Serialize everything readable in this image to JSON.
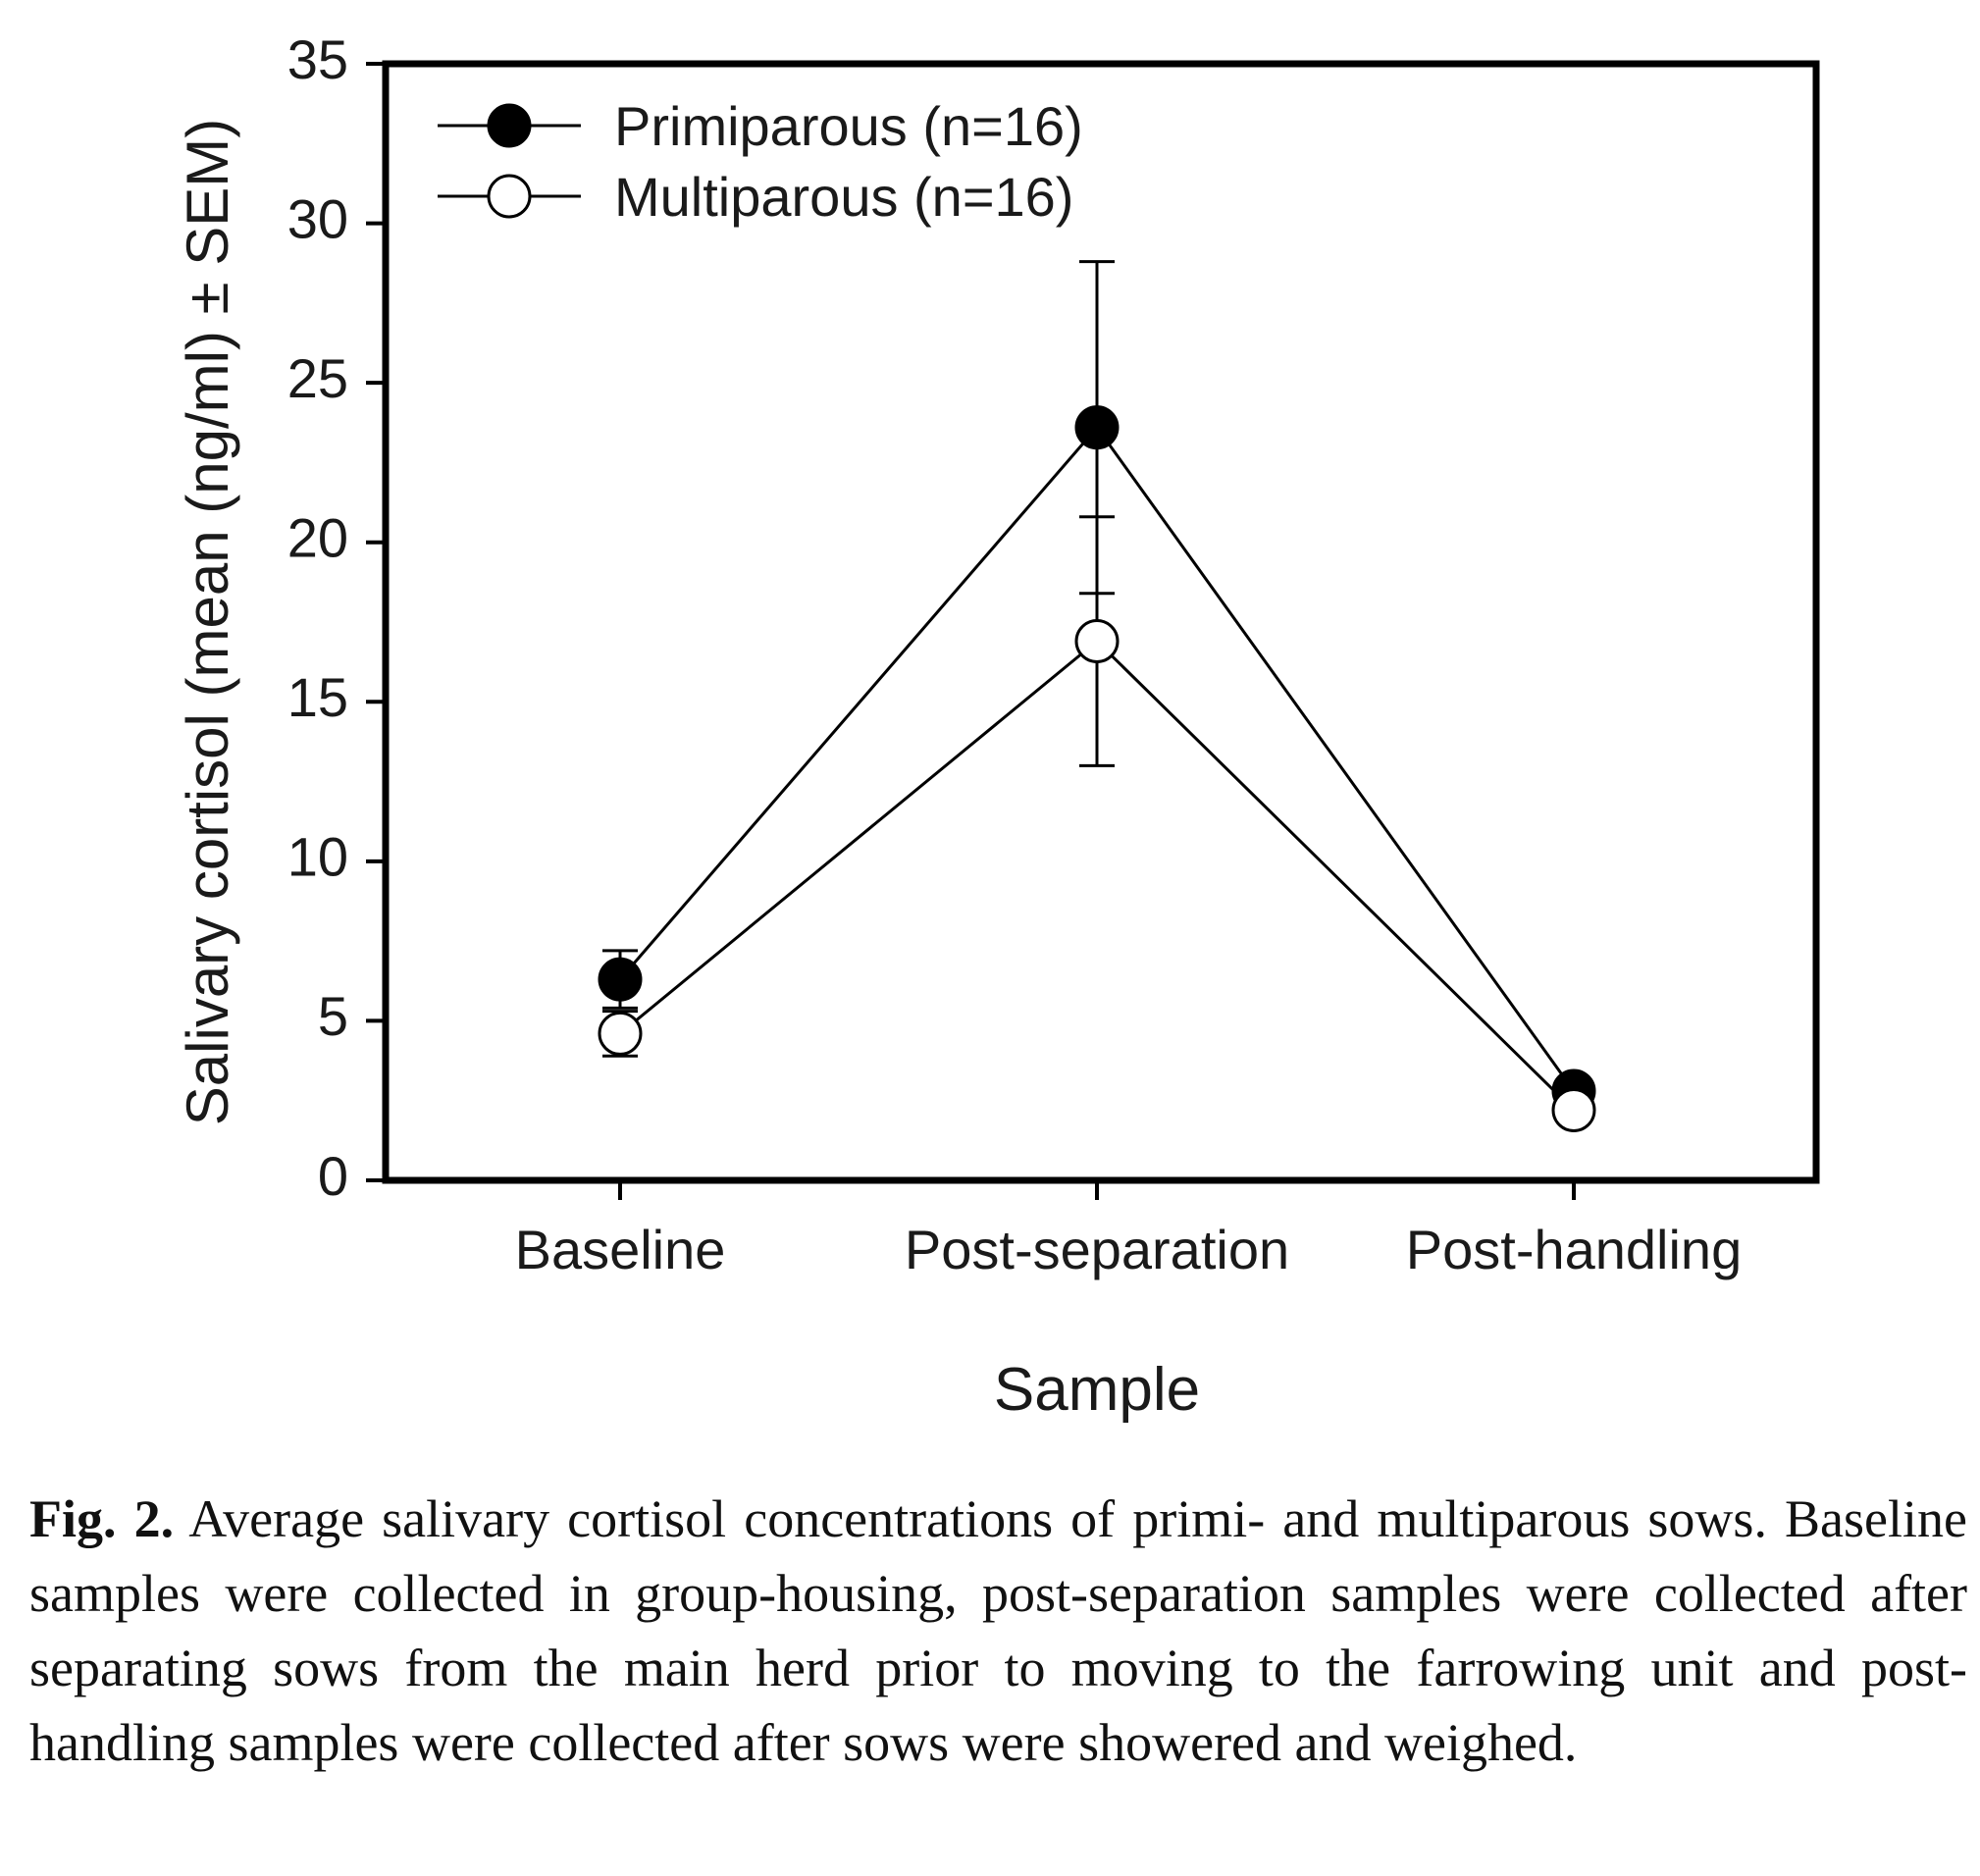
{
  "chart_data": {
    "type": "line",
    "categories": [
      "Baseline",
      "Post-separation",
      "Post-handling"
    ],
    "xlabel": "Sample",
    "ylabel": "Salivary cortisol (mean (ng/ml) ± SEM)",
    "ylim": [
      0,
      35
    ],
    "yticks": [
      "0",
      "5",
      "10",
      "15",
      "20",
      "25",
      "30",
      "35"
    ],
    "grid": false,
    "legend_position": "top-left",
    "series": [
      {
        "name": "Primiparous (n=16)",
        "marker": "filled-circle",
        "values": [
          6.3,
          23.6,
          2.8
        ],
        "sem": [
          0.9,
          5.2,
          0.3
        ]
      },
      {
        "name": "Multiparous (n=16)",
        "marker": "open-circle",
        "values": [
          4.6,
          16.9,
          2.2
        ],
        "sem": [
          0.7,
          3.9,
          0.2
        ]
      }
    ]
  },
  "caption": {
    "label": "Fig. 2.",
    "text": "Average salivary cortisol concentrations of primi- and multiparous sows. Baseline samples were collected in group-housing, post-separation samples were collected after separating sows from the main herd prior to moving to the farrowing unit and post-handling samples were collected after sows were showered and weighed."
  }
}
